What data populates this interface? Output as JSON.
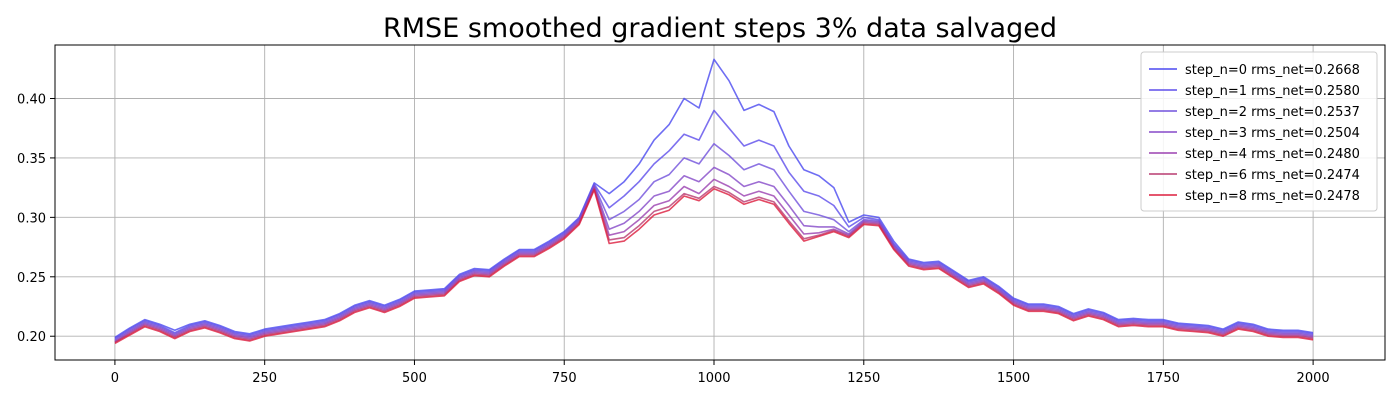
{
  "chart_data": {
    "type": "line",
    "title": "RMSE smoothed gradient steps 3% data salvaged",
    "xlabel": "",
    "ylabel": "",
    "xlim": [
      -100,
      2120
    ],
    "ylim": [
      0.18,
      0.445
    ],
    "xticks": [
      0,
      250,
      500,
      750,
      1000,
      1250,
      1500,
      1750,
      2000
    ],
    "xtick_labels": [
      "0",
      "250",
      "500",
      "750",
      "1000",
      "1250",
      "1500",
      "1750",
      "2000"
    ],
    "yticks": [
      0.2,
      0.25,
      0.3,
      0.35,
      0.4
    ],
    "ytick_labels": [
      "0.20",
      "0.25",
      "0.30",
      "0.35",
      "0.40"
    ],
    "grid": true,
    "legend_position": "top-right",
    "x": [
      0,
      25,
      50,
      75,
      100,
      125,
      150,
      175,
      200,
      225,
      250,
      275,
      300,
      325,
      350,
      375,
      400,
      425,
      450,
      475,
      500,
      525,
      550,
      575,
      600,
      625,
      650,
      675,
      700,
      725,
      750,
      775,
      800,
      825,
      850,
      875,
      900,
      925,
      950,
      975,
      1000,
      1025,
      1050,
      1075,
      1100,
      1125,
      1150,
      1175,
      1200,
      1225,
      1250,
      1275,
      1300,
      1325,
      1350,
      1375,
      1400,
      1425,
      1450,
      1475,
      1500,
      1525,
      1550,
      1575,
      1600,
      1625,
      1650,
      1675,
      1700,
      1725,
      1750,
      1775,
      1800,
      1825,
      1850,
      1875,
      1900,
      1925,
      1950,
      1975,
      2000
    ],
    "series": [
      {
        "name": "step_n=0 rms_net=0.2668",
        "color": "#4a48f0",
        "values": [
          0.199,
          0.207,
          0.214,
          0.21,
          0.205,
          0.21,
          0.213,
          0.209,
          0.204,
          0.202,
          0.206,
          0.208,
          0.21,
          0.212,
          0.214,
          0.219,
          0.226,
          0.23,
          0.226,
          0.231,
          0.238,
          0.239,
          0.24,
          0.252,
          0.257,
          0.256,
          0.265,
          0.273,
          0.273,
          0.28,
          0.288,
          0.3,
          0.329,
          0.32,
          0.33,
          0.345,
          0.365,
          0.378,
          0.4,
          0.392,
          0.433,
          0.415,
          0.39,
          0.395,
          0.389,
          0.36,
          0.34,
          0.335,
          0.325,
          0.296,
          0.302,
          0.3,
          0.28,
          0.265,
          0.262,
          0.263,
          0.255,
          0.247,
          0.25,
          0.242,
          0.232,
          0.227,
          0.227,
          0.225,
          0.219,
          0.223,
          0.22,
          0.214,
          0.215,
          0.214,
          0.214,
          0.211,
          0.21,
          0.209,
          0.206,
          0.212,
          0.21,
          0.206,
          0.205,
          0.205,
          0.203
        ]
      },
      {
        "name": "step_n=1 rms_net=0.2580",
        "color": "#5c4ceb",
        "values": [
          0.198,
          0.206,
          0.213,
          0.209,
          0.203,
          0.209,
          0.212,
          0.208,
          0.203,
          0.201,
          0.205,
          0.207,
          0.209,
          0.211,
          0.213,
          0.218,
          0.225,
          0.229,
          0.225,
          0.23,
          0.237,
          0.238,
          0.239,
          0.251,
          0.256,
          0.255,
          0.264,
          0.272,
          0.272,
          0.279,
          0.287,
          0.299,
          0.328,
          0.308,
          0.318,
          0.33,
          0.345,
          0.356,
          0.37,
          0.365,
          0.39,
          0.375,
          0.36,
          0.365,
          0.36,
          0.338,
          0.322,
          0.318,
          0.31,
          0.292,
          0.3,
          0.298,
          0.278,
          0.264,
          0.261,
          0.262,
          0.254,
          0.246,
          0.249,
          0.241,
          0.231,
          0.226,
          0.226,
          0.224,
          0.218,
          0.222,
          0.219,
          0.213,
          0.214,
          0.213,
          0.213,
          0.21,
          0.209,
          0.208,
          0.205,
          0.211,
          0.209,
          0.205,
          0.204,
          0.204,
          0.202
        ]
      },
      {
        "name": "step_n=2 rms_net=0.2537",
        "color": "#7050dc",
        "values": [
          0.197,
          0.205,
          0.212,
          0.208,
          0.202,
          0.208,
          0.211,
          0.207,
          0.202,
          0.2,
          0.204,
          0.206,
          0.208,
          0.21,
          0.212,
          0.217,
          0.224,
          0.228,
          0.224,
          0.229,
          0.236,
          0.237,
          0.238,
          0.25,
          0.255,
          0.254,
          0.263,
          0.271,
          0.271,
          0.278,
          0.286,
          0.298,
          0.327,
          0.298,
          0.305,
          0.315,
          0.33,
          0.336,
          0.35,
          0.345,
          0.362,
          0.352,
          0.34,
          0.345,
          0.34,
          0.322,
          0.305,
          0.302,
          0.298,
          0.288,
          0.298,
          0.297,
          0.277,
          0.263,
          0.26,
          0.261,
          0.253,
          0.245,
          0.248,
          0.24,
          0.23,
          0.225,
          0.225,
          0.223,
          0.217,
          0.221,
          0.218,
          0.212,
          0.213,
          0.212,
          0.212,
          0.209,
          0.208,
          0.207,
          0.204,
          0.21,
          0.208,
          0.204,
          0.203,
          0.203,
          0.201
        ]
      },
      {
        "name": "step_n=3 rms_net=0.2504",
        "color": "#8448c8",
        "values": [
          0.196,
          0.204,
          0.211,
          0.207,
          0.201,
          0.207,
          0.21,
          0.206,
          0.201,
          0.199,
          0.203,
          0.205,
          0.207,
          0.209,
          0.211,
          0.216,
          0.223,
          0.227,
          0.223,
          0.228,
          0.235,
          0.236,
          0.237,
          0.249,
          0.254,
          0.253,
          0.262,
          0.27,
          0.27,
          0.277,
          0.285,
          0.297,
          0.326,
          0.29,
          0.295,
          0.305,
          0.318,
          0.322,
          0.335,
          0.33,
          0.342,
          0.336,
          0.326,
          0.33,
          0.326,
          0.31,
          0.293,
          0.292,
          0.292,
          0.286,
          0.297,
          0.296,
          0.276,
          0.262,
          0.259,
          0.26,
          0.252,
          0.244,
          0.247,
          0.239,
          0.229,
          0.224,
          0.224,
          0.222,
          0.216,
          0.22,
          0.217,
          0.211,
          0.212,
          0.211,
          0.211,
          0.208,
          0.207,
          0.206,
          0.203,
          0.209,
          0.207,
          0.203,
          0.202,
          0.202,
          0.2
        ]
      },
      {
        "name": "step_n=4 rms_net=0.2480",
        "color": "#9a40b0",
        "values": [
          0.195,
          0.203,
          0.21,
          0.206,
          0.2,
          0.206,
          0.209,
          0.205,
          0.2,
          0.198,
          0.202,
          0.204,
          0.206,
          0.208,
          0.21,
          0.215,
          0.222,
          0.226,
          0.222,
          0.227,
          0.234,
          0.235,
          0.236,
          0.248,
          0.253,
          0.252,
          0.261,
          0.269,
          0.269,
          0.276,
          0.284,
          0.296,
          0.325,
          0.285,
          0.288,
          0.298,
          0.31,
          0.314,
          0.326,
          0.32,
          0.332,
          0.326,
          0.318,
          0.322,
          0.318,
          0.302,
          0.286,
          0.287,
          0.29,
          0.285,
          0.296,
          0.295,
          0.275,
          0.261,
          0.258,
          0.259,
          0.251,
          0.243,
          0.246,
          0.238,
          0.228,
          0.223,
          0.223,
          0.221,
          0.215,
          0.219,
          0.216,
          0.21,
          0.211,
          0.21,
          0.21,
          0.207,
          0.206,
          0.205,
          0.202,
          0.208,
          0.206,
          0.202,
          0.201,
          0.201,
          0.199
        ]
      },
      {
        "name": "step_n=6 rms_net=0.2474",
        "color": "#b83870",
        "values": [
          0.195,
          0.202,
          0.209,
          0.205,
          0.199,
          0.205,
          0.208,
          0.204,
          0.199,
          0.197,
          0.201,
          0.203,
          0.205,
          0.207,
          0.209,
          0.214,
          0.221,
          0.225,
          0.221,
          0.226,
          0.233,
          0.234,
          0.235,
          0.247,
          0.252,
          0.251,
          0.26,
          0.268,
          0.268,
          0.275,
          0.283,
          0.295,
          0.324,
          0.281,
          0.283,
          0.293,
          0.305,
          0.309,
          0.32,
          0.316,
          0.326,
          0.321,
          0.313,
          0.317,
          0.313,
          0.297,
          0.282,
          0.285,
          0.289,
          0.284,
          0.295,
          0.294,
          0.274,
          0.26,
          0.257,
          0.258,
          0.25,
          0.242,
          0.245,
          0.237,
          0.227,
          0.222,
          0.222,
          0.22,
          0.214,
          0.218,
          0.215,
          0.209,
          0.21,
          0.209,
          0.209,
          0.206,
          0.205,
          0.204,
          0.201,
          0.207,
          0.205,
          0.201,
          0.2,
          0.2,
          0.198
        ]
      },
      {
        "name": "step_n=8 rms_net=0.2478",
        "color": "#dc1c3c",
        "values": [
          0.194,
          0.201,
          0.208,
          0.204,
          0.198,
          0.204,
          0.207,
          0.203,
          0.198,
          0.196,
          0.2,
          0.202,
          0.204,
          0.206,
          0.208,
          0.213,
          0.22,
          0.224,
          0.22,
          0.225,
          0.232,
          0.233,
          0.234,
          0.246,
          0.251,
          0.25,
          0.259,
          0.267,
          0.267,
          0.274,
          0.282,
          0.294,
          0.323,
          0.278,
          0.28,
          0.29,
          0.302,
          0.306,
          0.318,
          0.314,
          0.324,
          0.319,
          0.311,
          0.315,
          0.311,
          0.295,
          0.28,
          0.284,
          0.288,
          0.283,
          0.294,
          0.293,
          0.273,
          0.259,
          0.256,
          0.257,
          0.249,
          0.241,
          0.244,
          0.236,
          0.226,
          0.221,
          0.221,
          0.219,
          0.213,
          0.217,
          0.214,
          0.208,
          0.209,
          0.208,
          0.208,
          0.205,
          0.204,
          0.203,
          0.2,
          0.206,
          0.204,
          0.2,
          0.199,
          0.199,
          0.197
        ]
      }
    ]
  }
}
